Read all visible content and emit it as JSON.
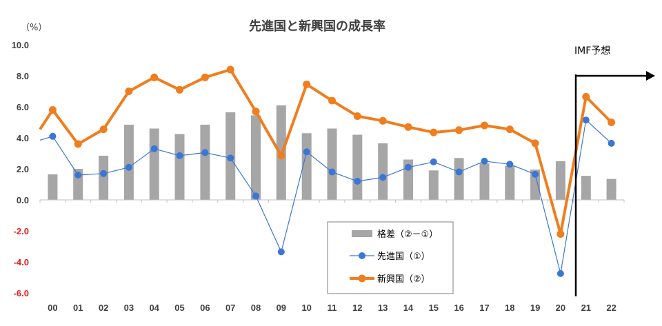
{
  "chart_data": {
    "type": "bar+line",
    "title": "先進国と新興国の成長率",
    "unit_label": "（%）",
    "categories": [
      "00",
      "01",
      "02",
      "03",
      "04",
      "05",
      "06",
      "07",
      "08",
      "09",
      "10",
      "11",
      "12",
      "13",
      "14",
      "15",
      "16",
      "17",
      "18",
      "19",
      "20",
      "21",
      "22"
    ],
    "ylim": [
      -6.0,
      10.0
    ],
    "yticks": [
      "10.0",
      "8.0",
      "6.0",
      "4.0",
      "2.0",
      "0.0",
      "-2.0",
      "-4.0",
      "-6.0"
    ],
    "ytick_values": [
      10,
      8,
      6,
      4,
      2,
      0,
      -2,
      -4,
      -6
    ],
    "series": [
      {
        "name": "格差（②－①）",
        "kind": "bar",
        "color": "#a6a6a6",
        "values": [
          1.65,
          2.0,
          2.85,
          4.85,
          4.6,
          4.25,
          4.85,
          5.65,
          5.45,
          6.1,
          4.3,
          4.6,
          4.2,
          3.65,
          2.6,
          1.9,
          2.7,
          2.35,
          2.2,
          1.95,
          2.5,
          1.55,
          1.35
        ]
      },
      {
        "name": "先進国（①）",
        "kind": "line",
        "color": "#3a76d6",
        "values": [
          4.1,
          1.6,
          1.7,
          2.1,
          3.3,
          2.85,
          3.05,
          2.7,
          0.25,
          -3.35,
          3.1,
          1.8,
          1.2,
          1.45,
          2.1,
          2.45,
          1.8,
          2.5,
          2.3,
          1.65,
          -4.75,
          5.15,
          3.65
        ]
      },
      {
        "name": "新興国（②）",
        "kind": "line",
        "color": "#f07d1e",
        "values": [
          5.8,
          3.6,
          4.55,
          7.0,
          7.9,
          7.1,
          7.9,
          8.4,
          5.7,
          2.85,
          7.45,
          6.4,
          5.4,
          5.1,
          4.7,
          4.35,
          4.5,
          4.8,
          4.55,
          3.65,
          -2.2,
          6.65,
          5.0
        ]
      }
    ],
    "annotation": "IMF予想",
    "legend_position": "bottom-center"
  }
}
